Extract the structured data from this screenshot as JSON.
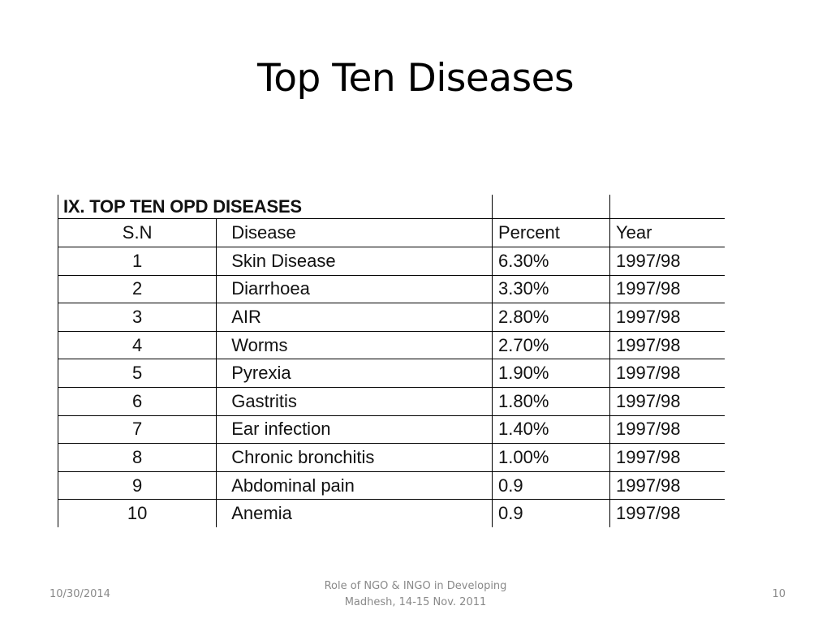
{
  "slide": {
    "title": "Top Ten Diseases"
  },
  "table": {
    "title": "IX. TOP TEN OPD DISEASES",
    "headers": {
      "sn": "S.N",
      "disease": "Disease",
      "percent": "Percent",
      "year": "Year"
    },
    "rows": [
      {
        "sn": "1",
        "disease": "Skin Disease",
        "percent": "6.30%",
        "year": "1997/98"
      },
      {
        "sn": "2",
        "disease": "Diarrhoea",
        "percent": "3.30%",
        "year": "1997/98"
      },
      {
        "sn": "3",
        "disease": "AIR",
        "percent": "2.80%",
        "year": "1997/98"
      },
      {
        "sn": "4",
        "disease": "Worms",
        "percent": "2.70%",
        "year": "1997/98"
      },
      {
        "sn": "5",
        "disease": "Pyrexia",
        "percent": "1.90%",
        "year": "1997/98"
      },
      {
        "sn": "6",
        "disease": "Gastritis",
        "percent": "1.80%",
        "year": "1997/98"
      },
      {
        "sn": "7",
        "disease": "Ear infection",
        "percent": "1.40%",
        "year": "1997/98"
      },
      {
        "sn": "8",
        "disease": "Chronic bronchitis",
        "percent": "1.00%",
        "year": "1997/98"
      },
      {
        "sn": "9",
        "disease": "Abdominal pain",
        "percent": "0.9",
        "year": "1997/98"
      },
      {
        "sn": "10",
        "disease": "Anemia",
        "percent": "0.9",
        "year": "1997/98"
      }
    ]
  },
  "footer": {
    "date": "10/30/2014",
    "center_line1": "Role of NGO & INGO in Developing",
    "center_line2": "Madhesh, 14-15 Nov. 2011",
    "page_number": "10"
  }
}
